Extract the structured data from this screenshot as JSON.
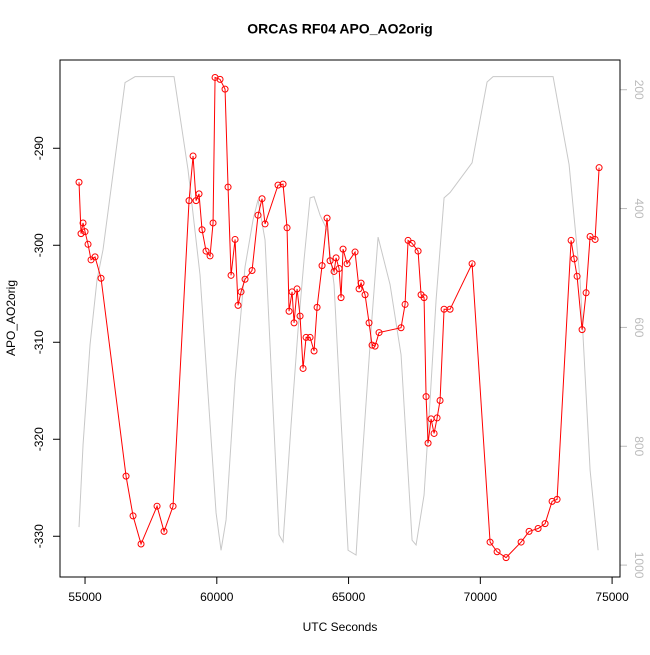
{
  "chart_data": {
    "type": "line",
    "title": "ORCAS RF04 APO_AO2orig",
    "xlabel": "UTC Seconds",
    "ylabel": "APO_AO2orig",
    "xlim": [
      54050,
      75300
    ],
    "xticks": [
      55000,
      60000,
      65000,
      70000,
      75000
    ],
    "ylim": [
      -334.2,
      -280.9
    ],
    "yticks": [
      -290,
      -300,
      -310,
      -320,
      -330
    ],
    "y2lim": [
      1020,
      150
    ],
    "y2ticks": [
      200,
      400,
      600,
      800,
      1000
    ],
    "series": [
      {
        "color": "#ff0000",
        "marker": true,
        "x": [
          54772,
          54848,
          54924,
          55000,
          55114,
          55228,
          55380,
          55607,
          56556,
          56822,
          57125,
          57733,
          57998,
          58340,
          58947,
          59099,
          59213,
          59326,
          59440,
          59592,
          59744,
          59858,
          59934,
          60123,
          60313,
          60427,
          60541,
          60693,
          60806,
          60920,
          61072,
          61338,
          61565,
          61717,
          61831,
          62324,
          62514,
          62666,
          62742,
          62856,
          62932,
          63046,
          63159,
          63273,
          63387,
          63539,
          63691,
          63805,
          63994,
          64184,
          64298,
          64450,
          64526,
          64639,
          64715,
          64791,
          64943,
          65247,
          65398,
          65474,
          65626,
          65778,
          65892,
          66006,
          66157,
          66992,
          67144,
          67258,
          67410,
          67638,
          67751,
          67865,
          67941,
          68017,
          68131,
          68245,
          68359,
          68472,
          68624,
          68852,
          69687,
          70370,
          70636,
          70977,
          71547,
          71850,
          72192,
          72457,
          72723,
          72913,
          73444,
          73558,
          73672,
          73861,
          74013,
          74165,
          74355,
          74507
        ],
        "values": [
          -293.5,
          -298.8,
          -297.7,
          -298.6,
          -299.9,
          -301.5,
          -301.2,
          -303.4,
          -323.8,
          -327.9,
          -330.8,
          -326.9,
          -329.5,
          -326.9,
          -295.4,
          -290.8,
          -295.4,
          -294.7,
          -298.4,
          -300.6,
          -301.1,
          -297.7,
          -282.7,
          -282.9,
          -283.9,
          -294.0,
          -303.1,
          -299.4,
          -306.2,
          -304.8,
          -303.5,
          -302.6,
          -296.9,
          -295.2,
          -297.8,
          -293.8,
          -293.7,
          -298.2,
          -306.8,
          -304.8,
          -308.0,
          -304.5,
          -307.3,
          -312.7,
          -309.5,
          -309.5,
          -310.9,
          -306.4,
          -302.1,
          -297.2,
          -301.6,
          -302.7,
          -301.3,
          -302.4,
          -305.4,
          -300.4,
          -301.9,
          -300.7,
          -304.5,
          -303.9,
          -305.1,
          -308.0,
          -310.3,
          -310.4,
          -309.0,
          -308.5,
          -306.1,
          -299.5,
          -299.8,
          -300.6,
          -305.1,
          -305.4,
          -315.6,
          -320.4,
          -317.9,
          -319.4,
          -317.8,
          -316.0,
          -306.6,
          -306.6,
          -301.9,
          -330.6,
          -331.6,
          -332.2,
          -330.6,
          -329.5,
          -329.2,
          -328.7,
          -326.4,
          -326.2,
          -299.5,
          -301.4,
          -303.2,
          -308.7,
          -304.9,
          -299.1,
          -299.4,
          -292.0
        ]
      },
      {
        "color": "#c8c8c8",
        "axis": "y2",
        "x": [
          54772,
          54924,
          55190,
          55455,
          55683,
          56518,
          56898,
          58378,
          58909,
          59364,
          59972,
          60161,
          60351,
          60693,
          61072,
          61376,
          61565,
          61831,
          62362,
          62514,
          62818,
          63083,
          63311,
          63539,
          63691,
          63918,
          64184,
          64450,
          64715,
          64981,
          65285,
          65436,
          65854,
          66120,
          66575,
          66992,
          67410,
          67562,
          67865,
          68093,
          68321,
          68624,
          68852,
          69687,
          70256,
          70484,
          72761,
          73368,
          73786,
          74165,
          74469
        ],
        "values": [
          936,
          798,
          629,
          520,
          469,
          188,
          178,
          178,
          335,
          512,
          912,
          975,
          924,
          688,
          498,
          419,
          385,
          453,
          949,
          961,
          764,
          604,
          486,
          382,
          380,
          411,
          436,
          528,
          756,
          975,
          983,
          874,
          604,
          448,
          528,
          646,
          958,
          966,
          882,
          722,
          554,
          382,
          373,
          323,
          187,
          178,
          178,
          326,
          520,
          840,
          975
        ]
      }
    ]
  }
}
